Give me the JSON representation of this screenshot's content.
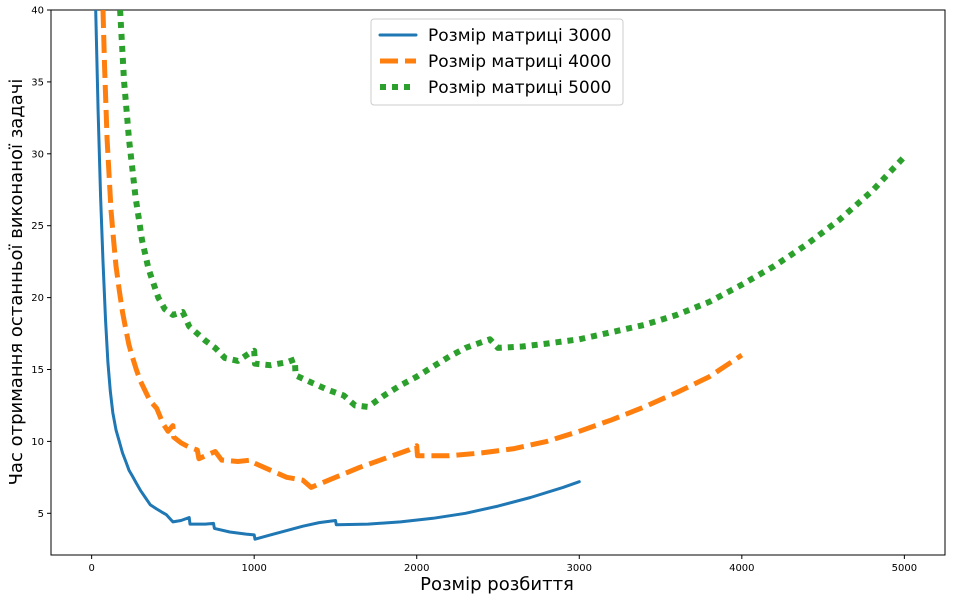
{
  "chart_data": {
    "type": "line",
    "xlabel": "Розмір розбиття",
    "ylabel": "Час отримання останньої виконаної задачі",
    "xlim": [
      -250,
      5250
    ],
    "ylim": [
      2.1,
      40
    ],
    "xticks": [
      0,
      1000,
      2000,
      3000,
      4000,
      5000
    ],
    "yticks": [
      5,
      10,
      15,
      20,
      25,
      30,
      35,
      40
    ],
    "grid": false,
    "legend_position": "top-center",
    "series": [
      {
        "name": "Розмір матриці 3000",
        "color": "#1f77b4",
        "style": "solid",
        "points": [
          [
            25,
            40
          ],
          [
            40,
            33
          ],
          [
            55,
            27
          ],
          [
            70,
            22.5
          ],
          [
            85,
            18.5
          ],
          [
            100,
            15.5
          ],
          [
            115,
            13.5
          ],
          [
            130,
            12
          ],
          [
            150,
            10.8
          ],
          [
            170,
            10
          ],
          [
            190,
            9.2
          ],
          [
            210,
            8.6
          ],
          [
            230,
            8
          ],
          [
            250,
            7.6
          ],
          [
            275,
            7.1
          ],
          [
            300,
            6.6
          ],
          [
            330,
            6.1
          ],
          [
            360,
            5.6
          ],
          [
            400,
            5.3
          ],
          [
            430,
            5.1
          ],
          [
            460,
            4.9
          ],
          [
            500,
            4.4
          ],
          [
            550,
            4.5
          ],
          [
            600,
            4.7
          ],
          [
            605,
            4.25
          ],
          [
            700,
            4.25
          ],
          [
            750,
            4.3
          ],
          [
            755,
            3.95
          ],
          [
            850,
            3.7
          ],
          [
            950,
            3.55
          ],
          [
            1000,
            3.5
          ],
          [
            1005,
            3.2
          ],
          [
            1100,
            3.5
          ],
          [
            1200,
            3.8
          ],
          [
            1300,
            4.1
          ],
          [
            1400,
            4.35
          ],
          [
            1500,
            4.5
          ],
          [
            1505,
            4.2
          ],
          [
            1700,
            4.25
          ],
          [
            1900,
            4.4
          ],
          [
            2100,
            4.65
          ],
          [
            2300,
            5
          ],
          [
            2500,
            5.5
          ],
          [
            2700,
            6.1
          ],
          [
            2900,
            6.8
          ],
          [
            3000,
            7.2
          ]
        ]
      },
      {
        "name": "Розмір матриці 4000",
        "color": "#ff7f0e",
        "style": "dashed",
        "points": [
          [
            70,
            40
          ],
          [
            80,
            36
          ],
          [
            95,
            31
          ],
          [
            110,
            28
          ],
          [
            120,
            26
          ],
          [
            135,
            24
          ],
          [
            150,
            22.2
          ],
          [
            170,
            20.5
          ],
          [
            190,
            19
          ],
          [
            210,
            17.8
          ],
          [
            230,
            16.7
          ],
          [
            250,
            15.9
          ],
          [
            275,
            15
          ],
          [
            300,
            14.2
          ],
          [
            330,
            13.5
          ],
          [
            360,
            12.8
          ],
          [
            400,
            12.3
          ],
          [
            440,
            11.2
          ],
          [
            470,
            10.7
          ],
          [
            500,
            11.1
          ],
          [
            505,
            10.3
          ],
          [
            550,
            9.9
          ],
          [
            600,
            9.6
          ],
          [
            650,
            9.4
          ],
          [
            660,
            8.8
          ],
          [
            700,
            9
          ],
          [
            760,
            9.3
          ],
          [
            800,
            8.7
          ],
          [
            900,
            8.6
          ],
          [
            980,
            8.7
          ],
          [
            1000,
            8.5
          ],
          [
            1100,
            8
          ],
          [
            1200,
            7.5
          ],
          [
            1300,
            7.3
          ],
          [
            1350,
            6.8
          ],
          [
            1500,
            7.5
          ],
          [
            1650,
            8.2
          ],
          [
            1800,
            8.8
          ],
          [
            1950,
            9.4
          ],
          [
            2000,
            9.7
          ],
          [
            2005,
            9
          ],
          [
            2200,
            9
          ],
          [
            2400,
            9.2
          ],
          [
            2600,
            9.5
          ],
          [
            2800,
            10
          ],
          [
            3000,
            10.7
          ],
          [
            3200,
            11.5
          ],
          [
            3400,
            12.4
          ],
          [
            3600,
            13.4
          ],
          [
            3800,
            14.5
          ],
          [
            4000,
            16
          ]
        ]
      },
      {
        "name": "Розмір матриці 5000",
        "color": "#2ca02c",
        "style": "dotted",
        "points": [
          [
            175,
            40
          ],
          [
            185,
            38
          ],
          [
            200,
            35
          ],
          [
            215,
            33
          ],
          [
            230,
            31
          ],
          [
            250,
            29
          ],
          [
            270,
            27
          ],
          [
            290,
            25.5
          ],
          [
            310,
            24
          ],
          [
            330,
            23
          ],
          [
            350,
            22
          ],
          [
            380,
            21
          ],
          [
            410,
            20
          ],
          [
            450,
            19.2
          ],
          [
            500,
            18.8
          ],
          [
            560,
            19
          ],
          [
            600,
            18
          ],
          [
            650,
            17.5
          ],
          [
            700,
            17
          ],
          [
            760,
            16.5
          ],
          [
            820,
            15.8
          ],
          [
            900,
            15.6
          ],
          [
            980,
            16.2
          ],
          [
            1000,
            16.3
          ],
          [
            1005,
            15.4
          ],
          [
            1100,
            15.3
          ],
          [
            1200,
            15.5
          ],
          [
            1250,
            15.7
          ],
          [
            1255,
            14.6
          ],
          [
            1350,
            14.1
          ],
          [
            1450,
            13.6
          ],
          [
            1550,
            13.2
          ],
          [
            1620,
            12.5
          ],
          [
            1700,
            12.4
          ],
          [
            1800,
            13.2
          ],
          [
            1900,
            13.9
          ],
          [
            2000,
            14.5
          ],
          [
            2100,
            15.2
          ],
          [
            2200,
            15.9
          ],
          [
            2300,
            16.5
          ],
          [
            2400,
            16.9
          ],
          [
            2450,
            17.1
          ],
          [
            2500,
            16.5
          ],
          [
            2650,
            16.6
          ],
          [
            2800,
            16.8
          ],
          [
            3000,
            17.1
          ],
          [
            3200,
            17.6
          ],
          [
            3400,
            18.1
          ],
          [
            3600,
            18.8
          ],
          [
            3800,
            19.7
          ],
          [
            4000,
            20.9
          ],
          [
            4200,
            22.2
          ],
          [
            4400,
            23.7
          ],
          [
            4600,
            25.4
          ],
          [
            4800,
            27.4
          ],
          [
            5000,
            29.8
          ]
        ]
      }
    ]
  }
}
